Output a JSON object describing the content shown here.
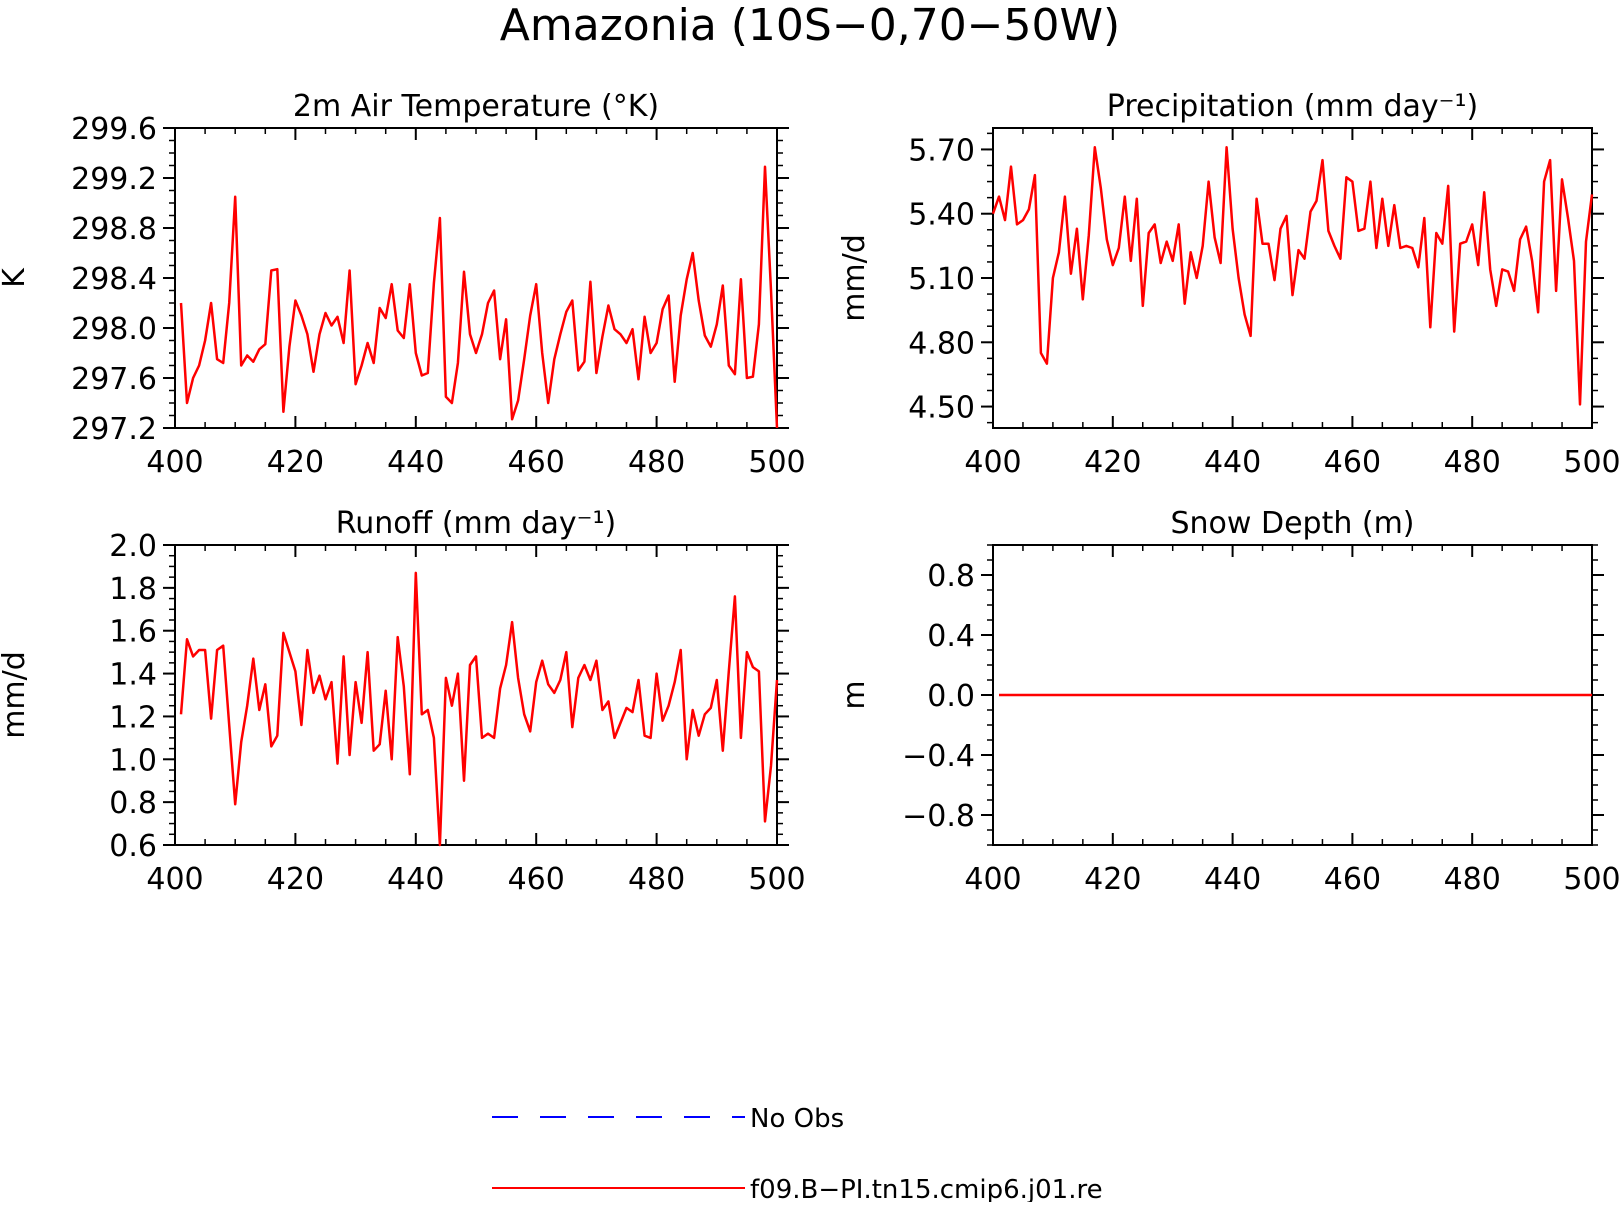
{
  "title": "Amazonia (10S−0,70−50W)",
  "legend": {
    "items": [
      {
        "label": "No Obs",
        "color": "#0000ff",
        "style": "dashed"
      },
      {
        "label": "f09.B−PI.tn15.cmip6.j01.re",
        "color": "#ff0000",
        "style": "solid"
      }
    ]
  },
  "chart_data": [
    {
      "type": "line",
      "title": "2m Air Temperature (°K)",
      "xlabel": "",
      "ylabel": "K",
      "xlim": [
        400,
        500
      ],
      "ylim": [
        297.2,
        299.6
      ],
      "xticks": [
        400,
        420,
        440,
        460,
        480,
        500
      ],
      "xtick_labels": [
        "400",
        "420",
        "440",
        "460",
        "480",
        "500"
      ],
      "yticks": [
        297.2,
        297.6,
        298.0,
        298.4,
        298.8,
        299.2,
        299.6
      ],
      "ytick_labels": [
        "297.2",
        "297.6",
        "298.0",
        "298.4",
        "298.8",
        "299.2",
        "299.6"
      ],
      "series": [
        {
          "name": "f09.B−PI.tn15.cmip6.j01.re",
          "color": "#ff0000",
          "x": [
            401,
            402,
            403,
            404,
            405,
            406,
            407,
            408,
            409,
            410,
            411,
            412,
            413,
            414,
            415,
            416,
            417,
            418,
            419,
            420,
            421,
            422,
            423,
            424,
            425,
            426,
            427,
            428,
            429,
            430,
            431,
            432,
            433,
            434,
            435,
            436,
            437,
            438,
            439,
            440,
            441,
            442,
            443,
            444,
            445,
            446,
            447,
            448,
            449,
            450,
            451,
            452,
            453,
            454,
            455,
            456,
            457,
            458,
            459,
            460,
            461,
            462,
            463,
            464,
            465,
            466,
            467,
            468,
            469,
            470,
            471,
            472,
            473,
            474,
            475,
            476,
            477,
            478,
            479,
            480,
            481,
            482,
            483,
            484,
            485,
            486,
            487,
            488,
            489,
            490,
            491,
            492,
            493,
            494,
            495,
            496,
            497,
            498,
            499,
            500
          ],
          "y": [
            298.2,
            297.4,
            297.6,
            297.7,
            297.9,
            298.2,
            297.75,
            297.72,
            298.2,
            299.05,
            297.7,
            297.78,
            297.73,
            297.83,
            297.87,
            298.46,
            298.47,
            297.33,
            297.85,
            298.22,
            298.1,
            297.95,
            297.65,
            297.95,
            298.12,
            298.02,
            298.09,
            297.88,
            298.46,
            297.55,
            297.7,
            297.88,
            297.72,
            298.16,
            298.08,
            298.35,
            297.98,
            297.92,
            298.35,
            297.8,
            297.62,
            297.64,
            298.36,
            298.88,
            297.45,
            297.4,
            297.72,
            298.45,
            297.95,
            297.8,
            297.95,
            298.2,
            298.3,
            297.75,
            298.07,
            297.27,
            297.42,
            297.75,
            298.1,
            298.35,
            297.8,
            297.4,
            297.75,
            297.95,
            298.13,
            298.22,
            297.66,
            297.73,
            298.37,
            297.64,
            297.93,
            298.18,
            297.99,
            297.95,
            297.88,
            297.99,
            297.59,
            298.09,
            297.8,
            297.88,
            298.15,
            298.26,
            297.57,
            298.1,
            298.39,
            298.6,
            298.22,
            297.94,
            297.85,
            298.03,
            298.34,
            297.7,
            297.63,
            298.39,
            297.6,
            297.61,
            298.03,
            299.29,
            298.3,
            297.2
          ]
        }
      ]
    },
    {
      "type": "line",
      "title": "Precipitation (mm day⁻¹)",
      "xlabel": "",
      "ylabel": "mm/d",
      "xlim": [
        400,
        500
      ],
      "ylim": [
        4.4,
        5.8
      ],
      "xticks": [
        400,
        420,
        440,
        460,
        480,
        500
      ],
      "xtick_labels": [
        "400",
        "420",
        "440",
        "460",
        "480",
        "500"
      ],
      "yticks": [
        4.5,
        4.8,
        5.1,
        5.4,
        5.7
      ],
      "ytick_labels": [
        "4.50",
        "4.80",
        "5.10",
        "5.40",
        "5.70"
      ],
      "series": [
        {
          "name": "f09.B−PI.tn15.cmip6.j01.re",
          "color": "#ff0000",
          "x": [
            400,
            401,
            402,
            403,
            404,
            405,
            406,
            407,
            408,
            409,
            410,
            411,
            412,
            413,
            414,
            415,
            416,
            417,
            418,
            419,
            420,
            421,
            422,
            423,
            424,
            425,
            426,
            427,
            428,
            429,
            430,
            431,
            432,
            433,
            434,
            435,
            436,
            437,
            438,
            439,
            440,
            441,
            442,
            443,
            444,
            445,
            446,
            447,
            448,
            449,
            450,
            451,
            452,
            453,
            454,
            455,
            456,
            457,
            458,
            459,
            460,
            461,
            462,
            463,
            464,
            465,
            466,
            467,
            468,
            469,
            470,
            471,
            472,
            473,
            474,
            475,
            476,
            477,
            478,
            479,
            480,
            481,
            482,
            483,
            484,
            485,
            486,
            487,
            488,
            489,
            490,
            491,
            492,
            493,
            494,
            495,
            496,
            497,
            498,
            499,
            500
          ],
          "y": [
            5.4,
            5.48,
            5.37,
            5.62,
            5.35,
            5.37,
            5.42,
            5.58,
            4.75,
            4.7,
            5.1,
            5.22,
            5.48,
            5.12,
            5.33,
            5.0,
            5.3,
            5.71,
            5.52,
            5.28,
            5.16,
            5.24,
            5.48,
            5.18,
            5.47,
            4.97,
            5.31,
            5.35,
            5.17,
            5.27,
            5.18,
            5.35,
            4.98,
            5.22,
            5.1,
            5.25,
            5.55,
            5.29,
            5.17,
            5.71,
            5.33,
            5.1,
            4.93,
            4.83,
            5.47,
            5.26,
            5.26,
            5.09,
            5.33,
            5.39,
            5.02,
            5.23,
            5.19,
            5.41,
            5.46,
            5.65,
            5.32,
            5.25,
            5.19,
            5.57,
            5.55,
            5.32,
            5.33,
            5.55,
            5.24,
            5.47,
            5.25,
            5.44,
            5.24,
            5.25,
            5.24,
            5.15,
            5.38,
            4.87,
            5.31,
            5.26,
            5.53,
            4.85,
            5.26,
            5.27,
            5.35,
            5.16,
            5.5,
            5.14,
            4.97,
            5.14,
            5.13,
            5.04,
            5.28,
            5.34,
            5.18,
            4.94,
            5.55,
            5.65,
            5.04,
            5.56,
            5.38,
            5.18,
            4.51,
            5.27,
            5.49
          ]
        }
      ]
    },
    {
      "type": "line",
      "title": "Runoff (mm day⁻¹)",
      "xlabel": "",
      "ylabel": "mm/d",
      "xlim": [
        400,
        500
      ],
      "ylim": [
        0.6,
        2.0
      ],
      "xticks": [
        400,
        420,
        440,
        460,
        480,
        500
      ],
      "xtick_labels": [
        "400",
        "420",
        "440",
        "460",
        "480",
        "500"
      ],
      "yticks": [
        0.6,
        0.8,
        1.0,
        1.2,
        1.4,
        1.6,
        1.8,
        2.0
      ],
      "ytick_labels": [
        "0.6",
        "0.8",
        "1.0",
        "1.2",
        "1.4",
        "1.6",
        "1.8",
        "2.0"
      ],
      "series": [
        {
          "name": "f09.B−PI.tn15.cmip6.j01.re",
          "color": "#ff0000",
          "x": [
            401,
            402,
            403,
            404,
            405,
            406,
            407,
            408,
            409,
            410,
            411,
            412,
            413,
            414,
            415,
            416,
            417,
            418,
            419,
            420,
            421,
            422,
            423,
            424,
            425,
            426,
            427,
            428,
            429,
            430,
            431,
            432,
            433,
            434,
            435,
            436,
            437,
            438,
            439,
            440,
            441,
            442,
            443,
            444,
            445,
            446,
            447,
            448,
            449,
            450,
            451,
            452,
            453,
            454,
            455,
            456,
            457,
            458,
            459,
            460,
            461,
            462,
            463,
            464,
            465,
            466,
            467,
            468,
            469,
            470,
            471,
            472,
            473,
            474,
            475,
            476,
            477,
            478,
            479,
            480,
            481,
            482,
            483,
            484,
            485,
            486,
            487,
            488,
            489,
            490,
            491,
            492,
            493,
            494,
            495,
            496,
            497,
            498,
            499,
            500
          ],
          "y": [
            1.21,
            1.56,
            1.48,
            1.51,
            1.51,
            1.19,
            1.51,
            1.53,
            1.16,
            0.79,
            1.08,
            1.25,
            1.47,
            1.23,
            1.35,
            1.06,
            1.11,
            1.59,
            1.5,
            1.41,
            1.16,
            1.51,
            1.31,
            1.39,
            1.28,
            1.36,
            0.98,
            1.48,
            1.02,
            1.36,
            1.17,
            1.5,
            1.04,
            1.07,
            1.32,
            1.0,
            1.57,
            1.34,
            0.93,
            1.87,
            1.21,
            1.23,
            1.1,
            0.6,
            1.38,
            1.25,
            1.4,
            0.9,
            1.44,
            1.48,
            1.1,
            1.12,
            1.1,
            1.33,
            1.44,
            1.64,
            1.38,
            1.21,
            1.13,
            1.36,
            1.46,
            1.35,
            1.31,
            1.37,
            1.5,
            1.15,
            1.38,
            1.44,
            1.37,
            1.46,
            1.23,
            1.27,
            1.1,
            1.17,
            1.24,
            1.22,
            1.37,
            1.11,
            1.1,
            1.4,
            1.18,
            1.25,
            1.36,
            1.51,
            1.0,
            1.23,
            1.11,
            1.21,
            1.24,
            1.37,
            1.04,
            1.41,
            1.76,
            1.1,
            1.5,
            1.43,
            1.41,
            0.71,
            0.97,
            1.37
          ]
        }
      ]
    },
    {
      "type": "line",
      "title": "Snow Depth (m)",
      "xlabel": "",
      "ylabel": "m",
      "xlim": [
        400,
        500
      ],
      "ylim": [
        -1.0,
        1.0
      ],
      "xticks": [
        400,
        420,
        440,
        460,
        480,
        500
      ],
      "xtick_labels": [
        "400",
        "420",
        "440",
        "460",
        "480",
        "500"
      ],
      "yticks": [
        -0.8,
        -0.4,
        0.0,
        0.4,
        0.8
      ],
      "ytick_labels": [
        "−0.8",
        "−0.4",
        "0.0",
        "0.4",
        "0.8"
      ],
      "series": [
        {
          "name": "f09.B−PI.tn15.cmip6.j01.re",
          "color": "#ff0000",
          "x": [
            401,
            500
          ],
          "y": [
            0.0,
            0.0
          ]
        }
      ]
    }
  ]
}
